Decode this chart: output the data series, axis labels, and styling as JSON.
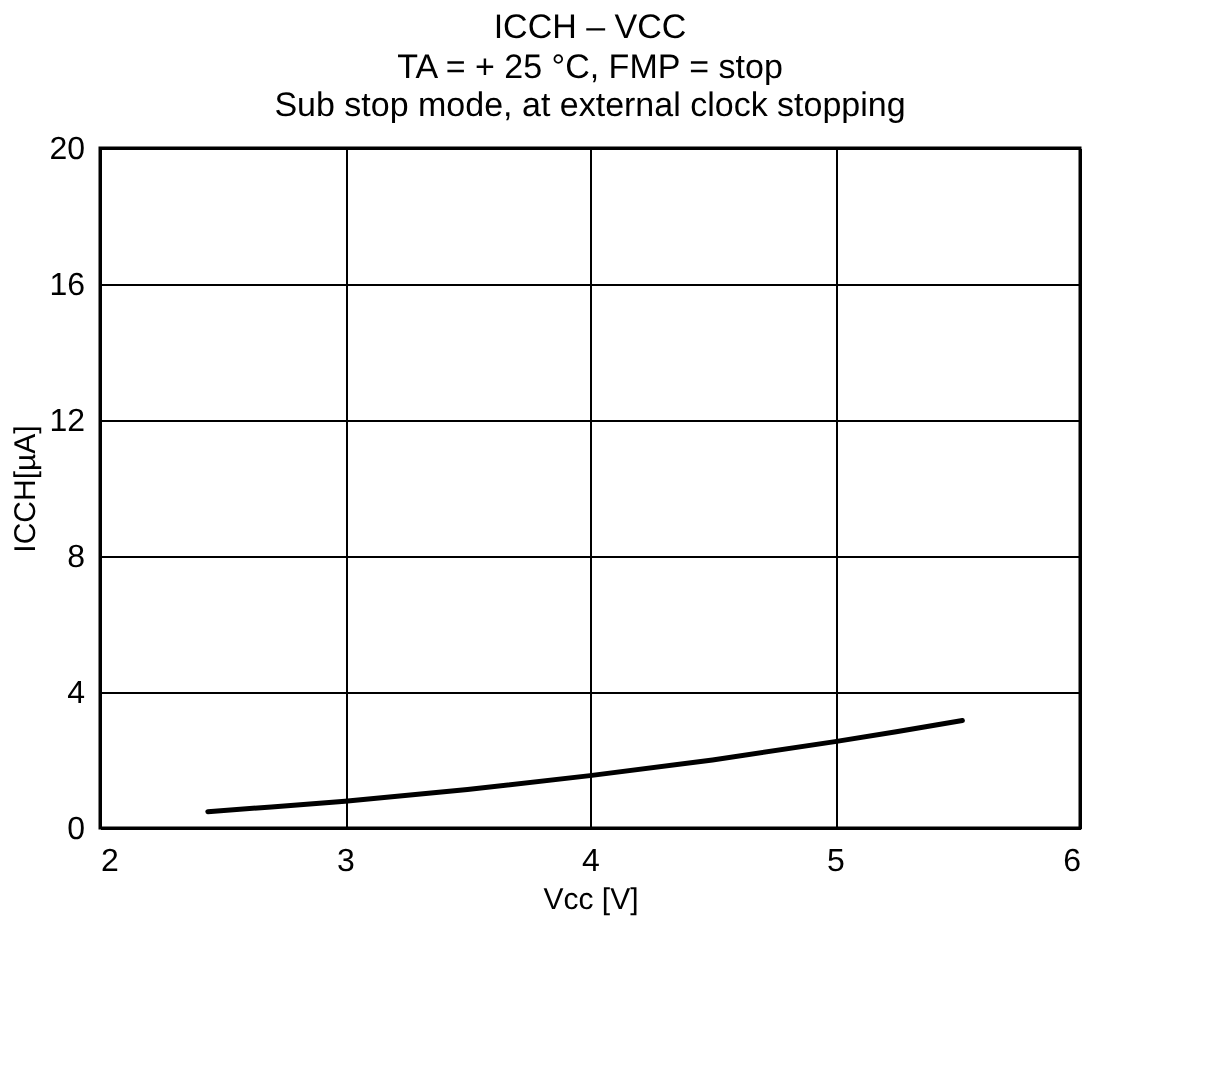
{
  "chart_data": {
    "type": "line",
    "title": "ICCH – VCC",
    "subtitle": "TA =  + 25 °C, FMP = stop\nSub stop mode, at external clock stopping",
    "xlabel": "Vcc [V]",
    "ylabel": "ICCH[µA]",
    "x": [
      2.44,
      2.7,
      3.0,
      3.5,
      4.0,
      4.5,
      5.0,
      5.25,
      5.52
    ],
    "series": [
      {
        "color": "#000000",
        "values": [
          0.48,
          0.62,
          0.79,
          1.13,
          1.54,
          2.0,
          2.54,
          2.83,
          3.16
        ]
      }
    ],
    "xlim": [
      2,
      6
    ],
    "ylim": [
      0,
      20
    ],
    "xticks": [
      2,
      3,
      4,
      5,
      6
    ],
    "yticks": [
      0,
      4,
      8,
      12,
      16,
      20
    ],
    "grid": true,
    "marker": "none",
    "line_style": "solid"
  }
}
